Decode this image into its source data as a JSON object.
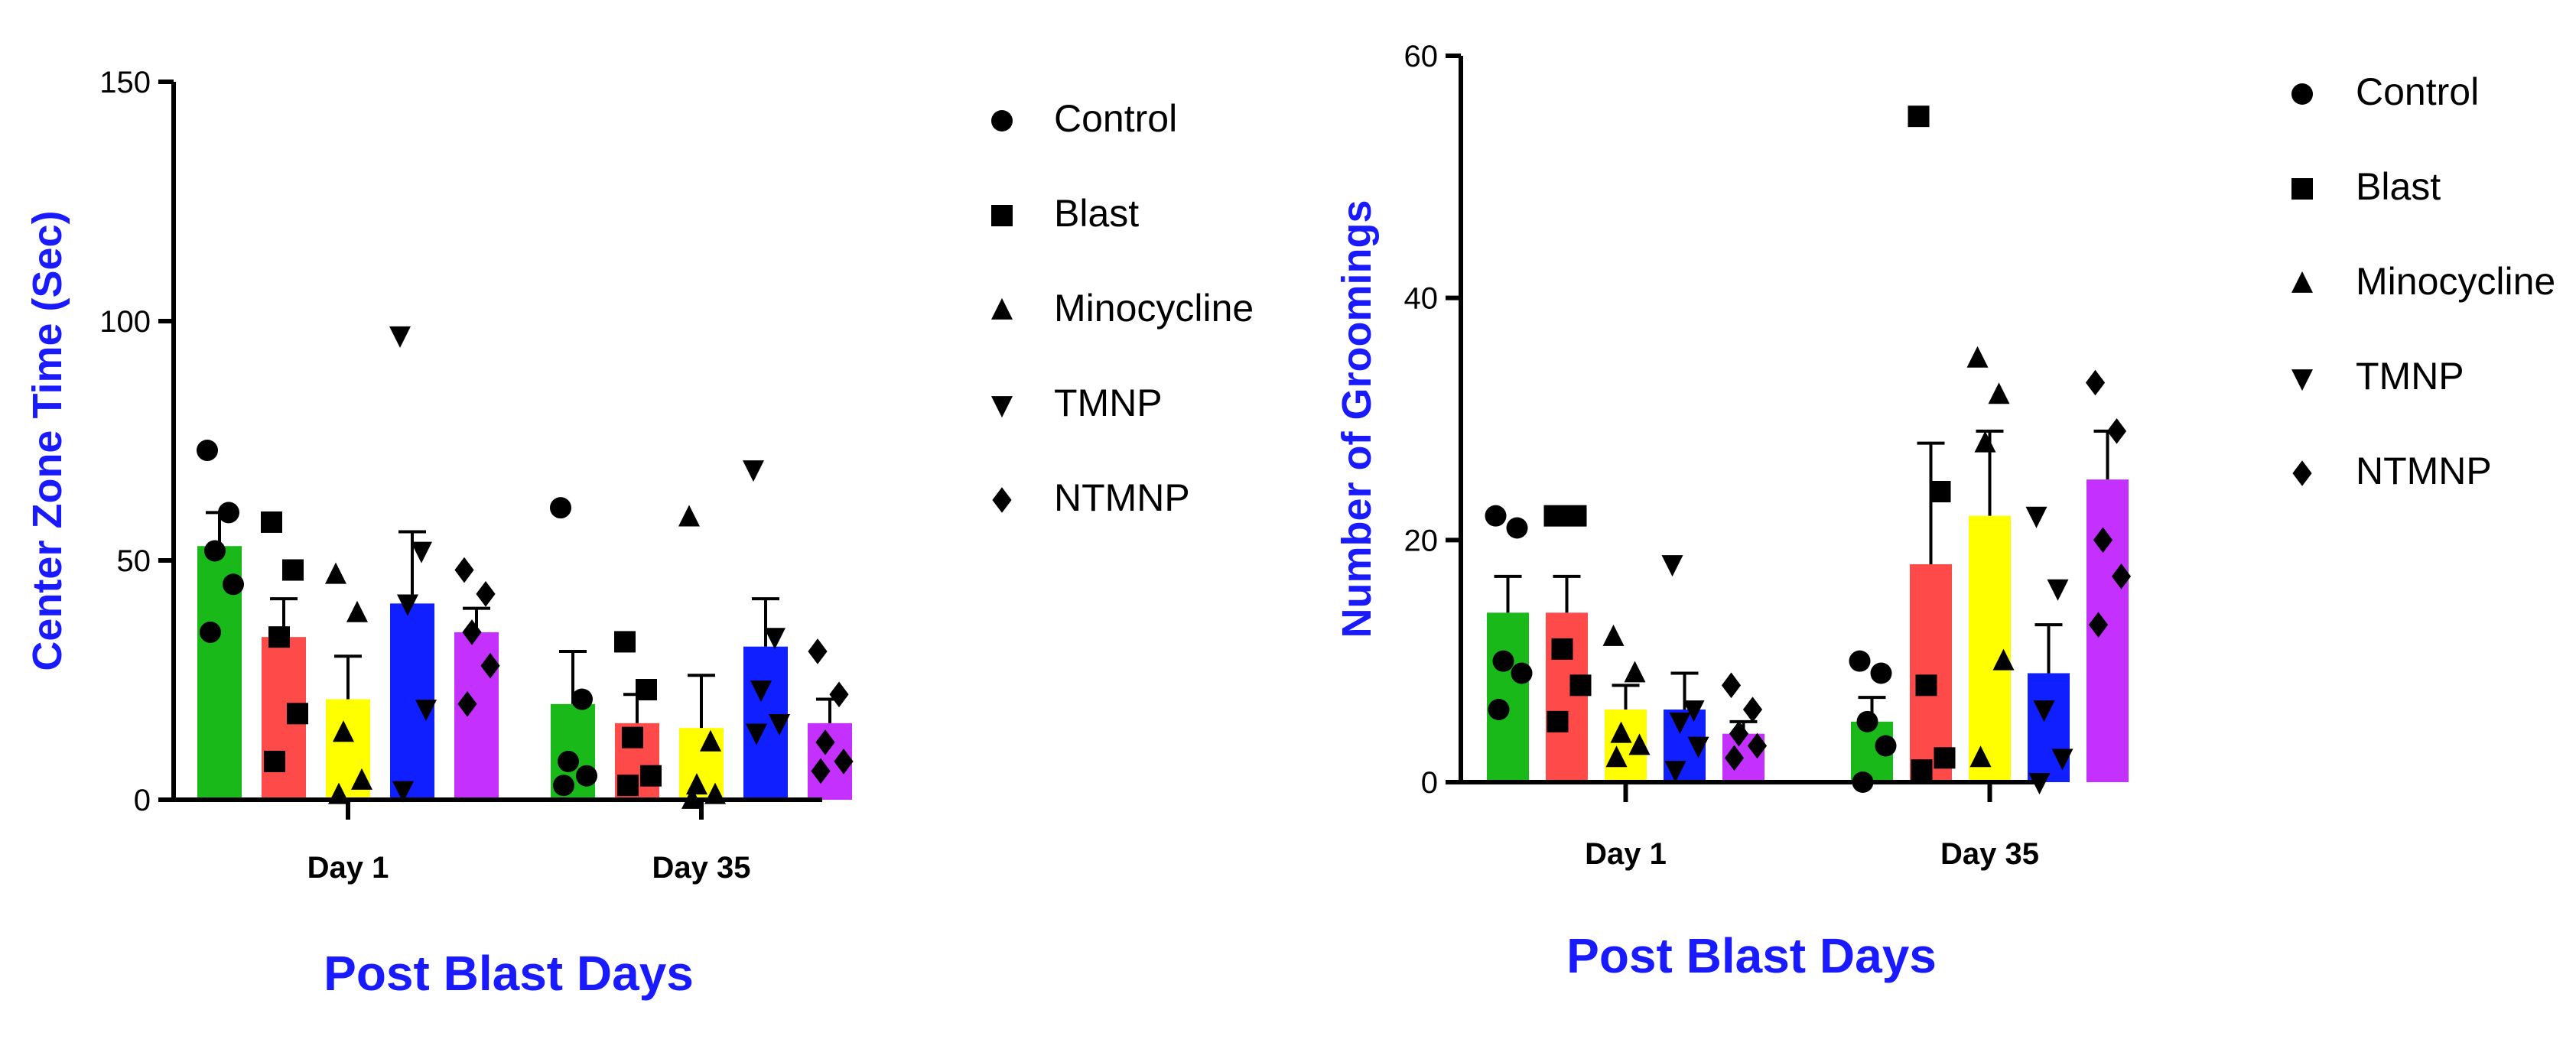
{
  "chart_data": [
    {
      "type": "bar",
      "title": "",
      "xlabel": "Post Blast Days",
      "ylabel": "Center Zone Time (Sec)",
      "ylim": [
        0,
        150
      ],
      "yticks": [
        0,
        50,
        100,
        150
      ],
      "categories": [
        "Day 1",
        "Day 35"
      ],
      "legend_position": "right",
      "series": [
        {
          "name": "Control",
          "marker": "circle",
          "color": "#19b919",
          "values": [
            53,
            20
          ],
          "sem": [
            7,
            11
          ],
          "points": [
            [
              73,
              60,
              52,
              45,
              35
            ],
            [
              61,
              21,
              8,
              5,
              3
            ]
          ]
        },
        {
          "name": "Blast",
          "marker": "square",
          "color": "#ff4a4a",
          "values": [
            34,
            16
          ],
          "sem": [
            8,
            6
          ],
          "points": [
            [
              58,
              48,
              34,
              18,
              8
            ],
            [
              33,
              23,
              13,
              5,
              3
            ]
          ]
        },
        {
          "name": "Minocycline",
          "marker": "triangle-up",
          "color": "#ffff00",
          "values": [
            21,
            15
          ],
          "sem": [
            9,
            11
          ],
          "points": [
            [
              47,
              39,
              14,
              4,
              1
            ],
            [
              59,
              12,
              3,
              1,
              0
            ]
          ]
        },
        {
          "name": "TMNP",
          "marker": "triangle-down",
          "color": "#0f1fff",
          "values": [
            41,
            32
          ],
          "sem": [
            15,
            10
          ],
          "points": [
            [
              97,
              52,
              41,
              19,
              2
            ],
            [
              69,
              34,
              23,
              16,
              14
            ]
          ]
        },
        {
          "name": "NTMNP",
          "marker": "diamond",
          "color": "#c431ff",
          "values": [
            35,
            16
          ],
          "sem": [
            5,
            5
          ],
          "points": [
            [
              48,
              43,
              35,
              28,
              20
            ],
            [
              31,
              22,
              12,
              8,
              6
            ]
          ]
        }
      ]
    },
    {
      "type": "bar",
      "title": "",
      "xlabel": "Post Blast Days",
      "ylabel": "Number of Groomings",
      "ylim": [
        0,
        60
      ],
      "yticks": [
        0,
        20,
        40,
        60
      ],
      "categories": [
        "Day 1",
        "Day 35"
      ],
      "legend_position": "right",
      "series": [
        {
          "name": "Control",
          "marker": "circle",
          "color": "#19b919",
          "values": [
            14,
            5
          ],
          "sem": [
            3,
            2
          ],
          "points": [
            [
              22,
              21,
              10,
              9,
              6
            ],
            [
              10,
              9,
              5,
              3,
              0
            ]
          ]
        },
        {
          "name": "Blast",
          "marker": "square",
          "color": "#ff4a4a",
          "values": [
            14,
            18
          ],
          "sem": [
            3,
            10
          ],
          "points": [
            [
              22,
              22,
              11,
              8,
              5
            ],
            [
              55,
              24,
              8,
              2,
              1
            ]
          ]
        },
        {
          "name": "Minocycline",
          "marker": "triangle-up",
          "color": "#ffff00",
          "values": [
            6,
            22
          ],
          "sem": [
            2,
            7
          ],
          "points": [
            [
              12,
              9,
              4,
              3,
              2
            ],
            [
              35,
              32,
              28,
              10,
              2
            ]
          ]
        },
        {
          "name": "TMNP",
          "marker": "triangle-down",
          "color": "#0f1fff",
          "values": [
            6,
            9
          ],
          "sem": [
            3,
            4
          ],
          "points": [
            [
              18,
              6,
              5,
              3,
              1
            ],
            [
              22,
              16,
              6,
              2,
              0
            ]
          ]
        },
        {
          "name": "NTMNP",
          "marker": "diamond",
          "color": "#c431ff",
          "values": [
            4,
            25
          ],
          "sem": [
            1,
            4
          ],
          "points": [
            [
              8,
              6,
              4,
              3,
              2
            ],
            [
              33,
              29,
              20,
              17,
              13
            ]
          ]
        }
      ]
    }
  ]
}
